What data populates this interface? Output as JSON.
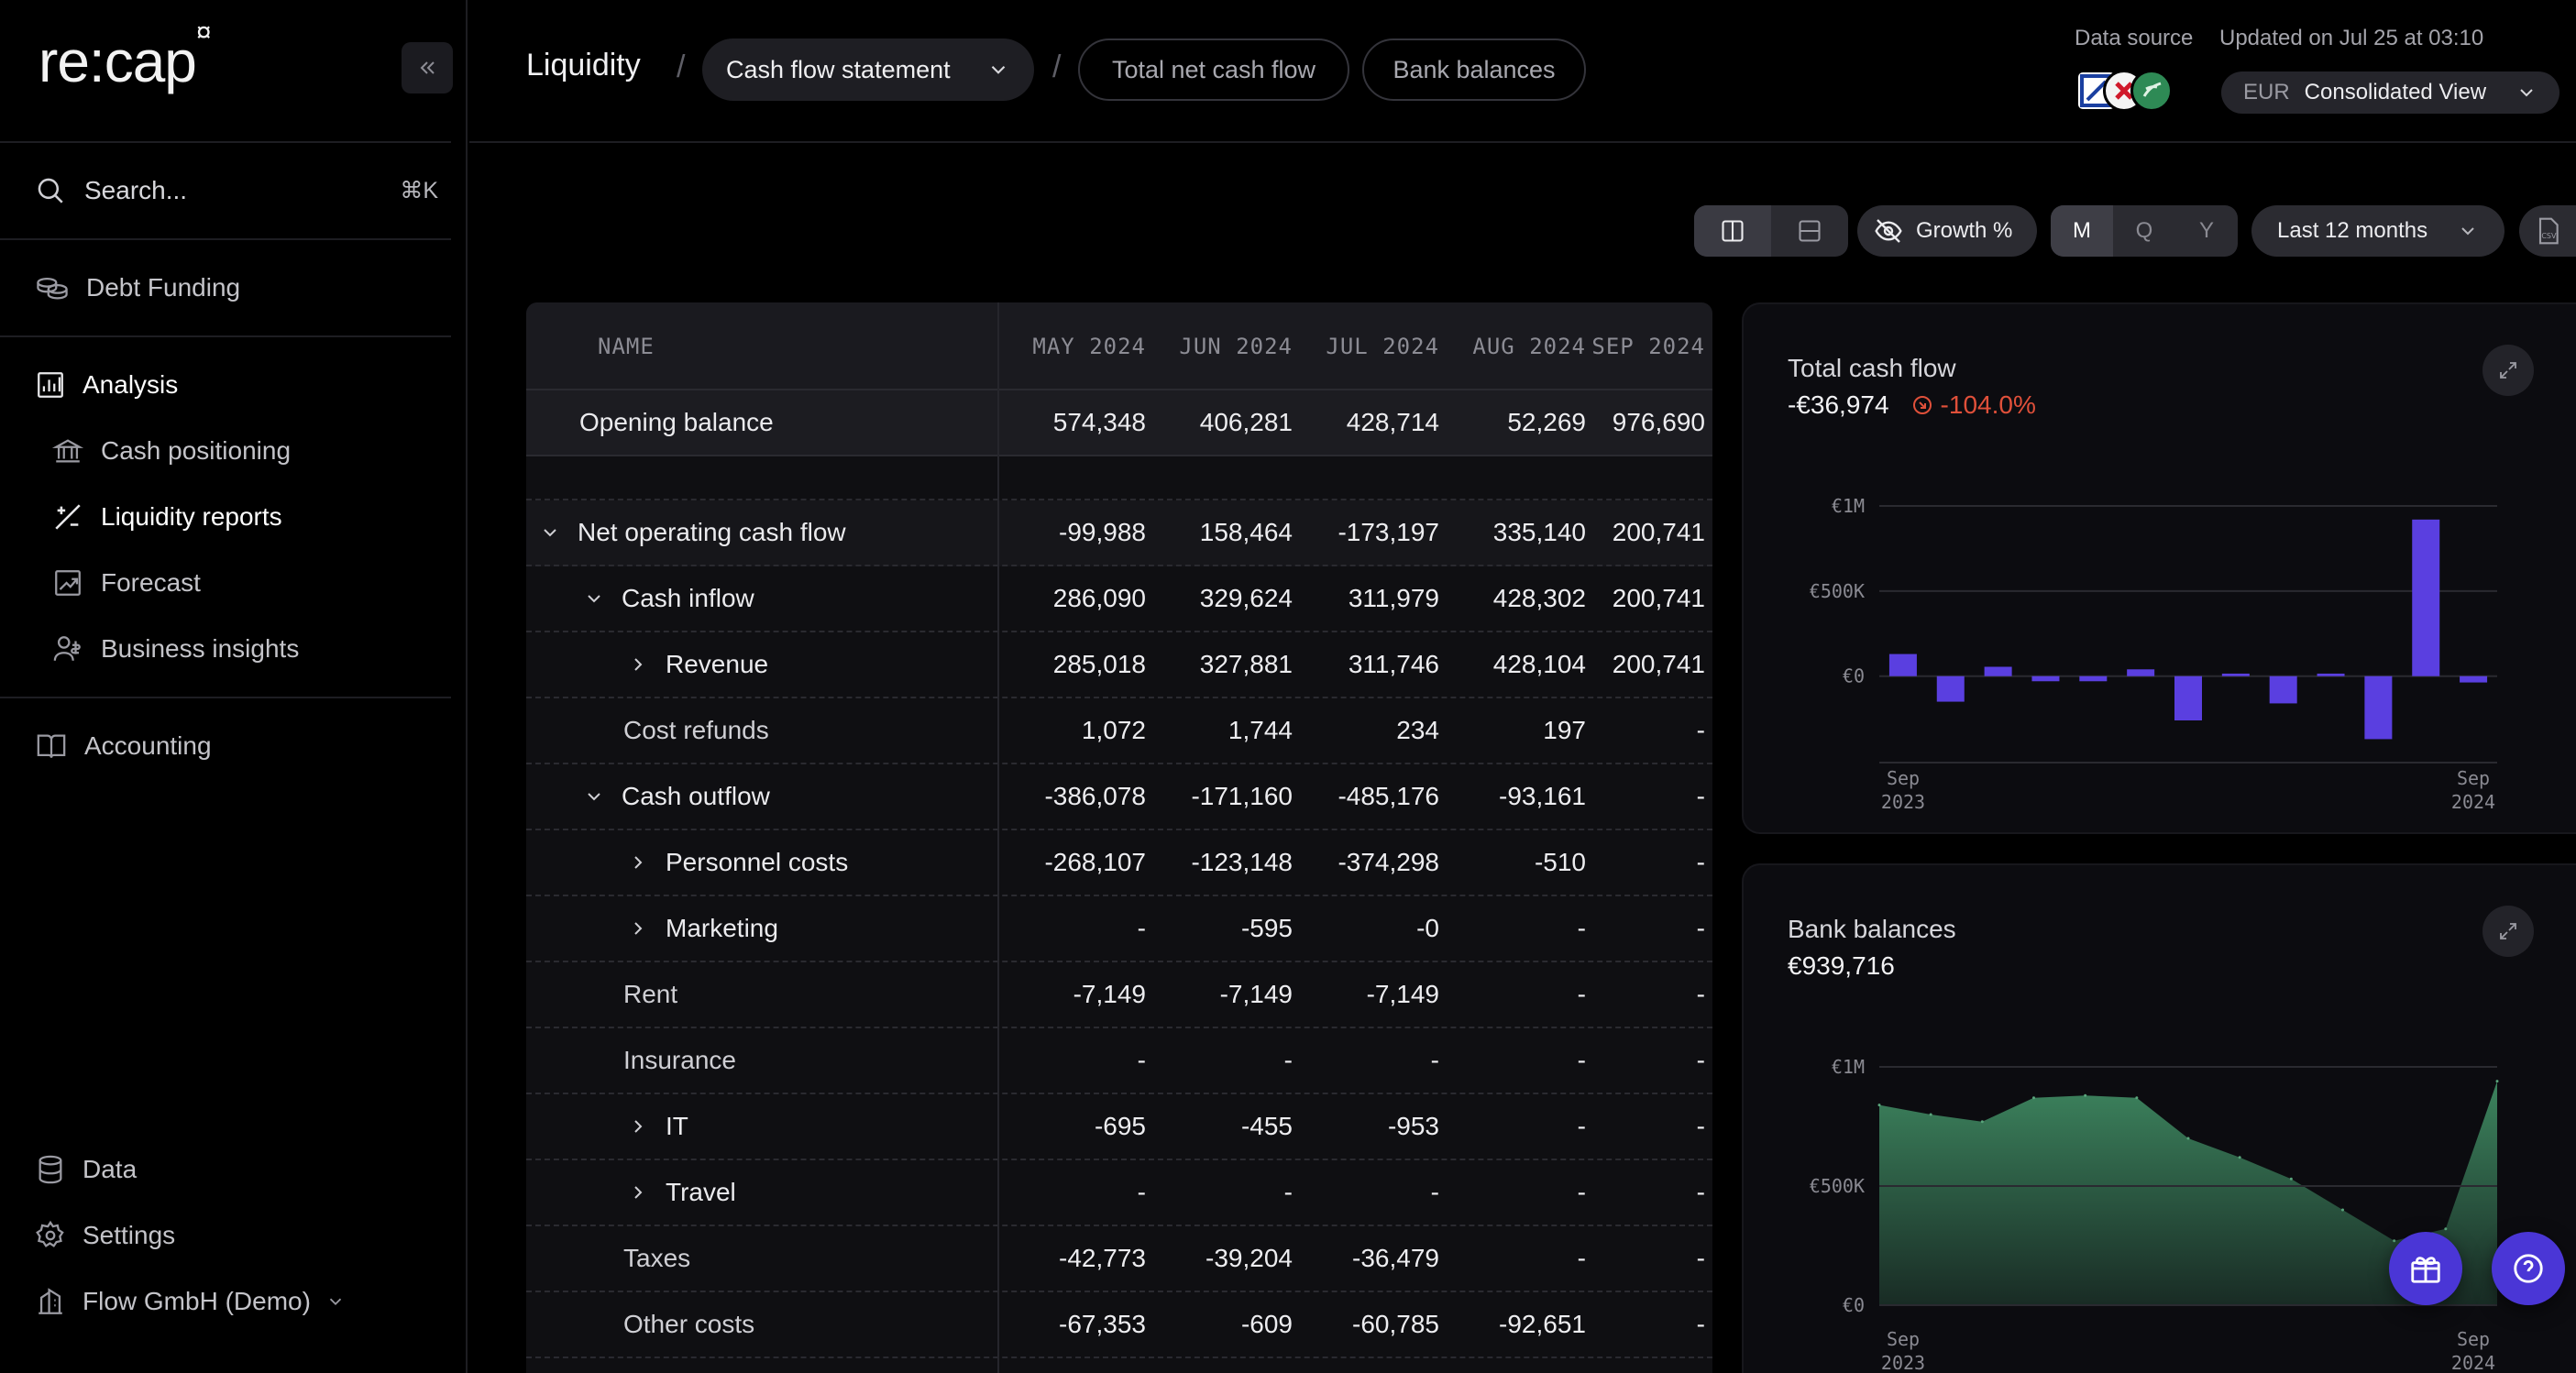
{
  "brand": {
    "logo_text": "re:cap",
    "logo_mark": "¤"
  },
  "sidebar": {
    "search_label": "Search...",
    "search_shortcut": "⌘K",
    "items": [
      {
        "label": "Debt Funding",
        "icon": "coins-icon"
      },
      {
        "label": "Analysis",
        "icon": "chart-grid-icon"
      },
      {
        "label": "Cash positioning",
        "icon": "bank-icon"
      },
      {
        "label": "Liquidity reports",
        "icon": "liquidity-icon"
      },
      {
        "label": "Forecast",
        "icon": "forecast-icon"
      },
      {
        "label": "Business insights",
        "icon": "insights-icon"
      },
      {
        "label": "Accounting",
        "icon": "book-icon"
      }
    ],
    "bottom": [
      {
        "label": "Data",
        "icon": "database-icon"
      },
      {
        "label": "Settings",
        "icon": "gear-icon"
      },
      {
        "label": "Flow GmbH (Demo)",
        "icon": "building-icon"
      }
    ]
  },
  "header": {
    "title": "Liquidity",
    "report_select": "Cash flow statement",
    "tabs": [
      "Total net cash flow",
      "Bank balances"
    ],
    "data_source_label": "Data source",
    "updated_label": "Updated on Jul 25 at 03:10",
    "currency": "EUR",
    "view": "Consolidated View"
  },
  "toolbar": {
    "growth_label": "Growth %",
    "periods": [
      "M",
      "Q",
      "Y"
    ],
    "active_period": "M",
    "range_label": "Last 12 months",
    "csv_label": "CSV"
  },
  "table": {
    "name_header": "NAME",
    "columns": [
      "MAY 2024",
      "JUN 2024",
      "JUL 2024",
      "AUG 2024",
      "SEP 2024"
    ],
    "rows": [
      {
        "label": "Opening balance",
        "values": [
          "574,348",
          "406,281",
          "428,714",
          "52,269",
          "976,690"
        ]
      },
      {
        "label": "Net operating cash flow",
        "values": [
          "-99,988",
          "158,464",
          "-173,197",
          "335,140",
          "200,741"
        ]
      },
      {
        "label": "Cash inflow",
        "values": [
          "286,090",
          "329,624",
          "311,979",
          "428,302",
          "200,741"
        ]
      },
      {
        "label": "Revenue",
        "values": [
          "285,018",
          "327,881",
          "311,746",
          "428,104",
          "200,741"
        ]
      },
      {
        "label": "Cost refunds",
        "values": [
          "1,072",
          "1,744",
          "234",
          "197",
          "-"
        ]
      },
      {
        "label": "Cash outflow",
        "values": [
          "-386,078",
          "-171,160",
          "-485,176",
          "-93,161",
          "-"
        ]
      },
      {
        "label": "Personnel costs",
        "values": [
          "-268,107",
          "-123,148",
          "-374,298",
          "-510",
          "-"
        ]
      },
      {
        "label": "Marketing",
        "values": [
          "-",
          "-595",
          "-0",
          "-",
          "-"
        ]
      },
      {
        "label": "Rent",
        "values": [
          "-7,149",
          "-7,149",
          "-7,149",
          "-",
          "-"
        ]
      },
      {
        "label": "Insurance",
        "values": [
          "-",
          "-",
          "-",
          "-",
          "-"
        ]
      },
      {
        "label": "IT",
        "values": [
          "-695",
          "-455",
          "-953",
          "-",
          "-"
        ]
      },
      {
        "label": "Travel",
        "values": [
          "-",
          "-",
          "-",
          "-",
          "-"
        ]
      },
      {
        "label": "Taxes",
        "values": [
          "-42,773",
          "-39,204",
          "-36,479",
          "-",
          "-"
        ]
      },
      {
        "label": "Other costs",
        "values": [
          "-67,353",
          "-609",
          "-60,785",
          "-92,651",
          "-"
        ]
      }
    ]
  },
  "cards": {
    "cashflow": {
      "title": "Total cash flow",
      "value": "-€36,974",
      "change": "-104.0%"
    },
    "balances": {
      "title": "Bank balances",
      "value": "€939,716"
    }
  },
  "chart_data": [
    {
      "type": "bar",
      "title": "Total cash flow",
      "x_labels": [
        "Sep 2023",
        "Sep 2024"
      ],
      "y_ticks": [
        "€1M",
        "€500K",
        "€0"
      ],
      "ylim": [
        -400000,
        1000000
      ],
      "values": [
        130000,
        -150000,
        55000,
        -30000,
        -30000,
        40000,
        -260000,
        15000,
        -160000,
        15000,
        -370000,
        920000,
        -37000
      ],
      "color": "#5a3fe0"
    },
    {
      "type": "area",
      "title": "Bank balances",
      "x_labels": [
        "Sep 2023",
        "Sep 2024"
      ],
      "y_ticks": [
        "€1M",
        "€500K",
        "€0"
      ],
      "ylim": [
        0,
        1000000
      ],
      "values": [
        840000,
        800000,
        770000,
        870000,
        880000,
        870000,
        700000,
        620000,
        530000,
        400000,
        270000,
        320000,
        940000
      ],
      "color": "#3f8a62"
    }
  ],
  "colors": {
    "accent": "#4a36d6",
    "negative": "#e0503a",
    "bar": "#5a3fe0",
    "area": "#3f8a62"
  }
}
